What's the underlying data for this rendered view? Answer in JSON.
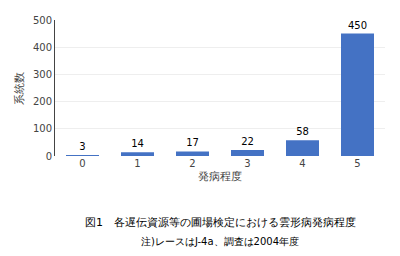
{
  "chart_data": {
    "type": "bar",
    "categories": [
      0,
      1,
      2,
      3,
      4,
      5
    ],
    "values": [
      3,
      14,
      17,
      22,
      58,
      450
    ],
    "color": "#4472C4",
    "xlabel": "発病程度",
    "ylabel": "系統数",
    "ylim": [
      0,
      500
    ],
    "yticks": [
      0,
      100,
      200,
      300,
      400,
      500
    ],
    "grid": true,
    "data_labels": true,
    "annotations": [
      "図1　各遅伝資源等の圃場検定における雲形病発病程度",
      "注)レースはJ-4a、調査は2004年度"
    ]
  }
}
